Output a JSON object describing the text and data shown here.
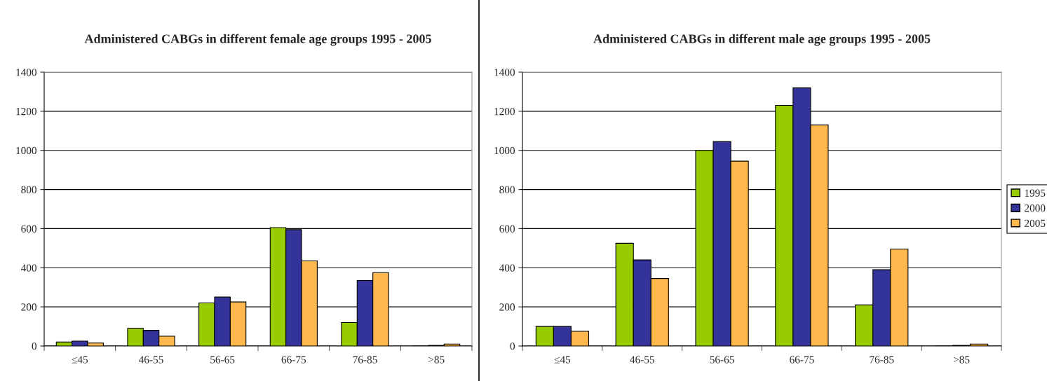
{
  "chart_data": [
    {
      "type": "bar",
      "title": "Administered CABGs in different female age groups 1995 - 2005",
      "categories": [
        "≤45",
        "46-55",
        "56-65",
        "66-75",
        "76-85",
        ">85"
      ],
      "series": [
        {
          "color": "#99cc00",
          "values": [
            20,
            90,
            220,
            605,
            120,
            null
          ]
        },
        {
          "color": "#333399",
          "values": [
            25,
            80,
            250,
            595,
            335,
            3
          ]
        },
        {
          "color": "#ffb84d",
          "values": [
            15,
            50,
            225,
            435,
            375,
            10
          ]
        }
      ],
      "ylim": [
        0,
        1400
      ],
      "yticks": [
        0,
        200,
        400,
        600,
        800,
        1000,
        1200,
        1400
      ],
      "grid": "y",
      "legend": false
    },
    {
      "type": "bar",
      "title": "Administered CABGs in different male age groups 1995 - 2005",
      "categories": [
        "≤45",
        "46-55",
        "56-65",
        "66-75",
        "76-85",
        ">85"
      ],
      "series": [
        {
          "name": "1995",
          "color": "#99cc00",
          "values": [
            100,
            525,
            1000,
            1230,
            210,
            null
          ]
        },
        {
          "name": "2000",
          "color": "#333399",
          "values": [
            100,
            440,
            1045,
            1320,
            390,
            3
          ]
        },
        {
          "name": "2005",
          "color": "#ffb84d",
          "values": [
            75,
            345,
            945,
            1130,
            495,
            10
          ]
        }
      ],
      "ylim": [
        0,
        1400
      ],
      "yticks": [
        0,
        200,
        400,
        600,
        800,
        1000,
        1200,
        1400
      ],
      "grid": "y",
      "legend": "right"
    }
  ]
}
